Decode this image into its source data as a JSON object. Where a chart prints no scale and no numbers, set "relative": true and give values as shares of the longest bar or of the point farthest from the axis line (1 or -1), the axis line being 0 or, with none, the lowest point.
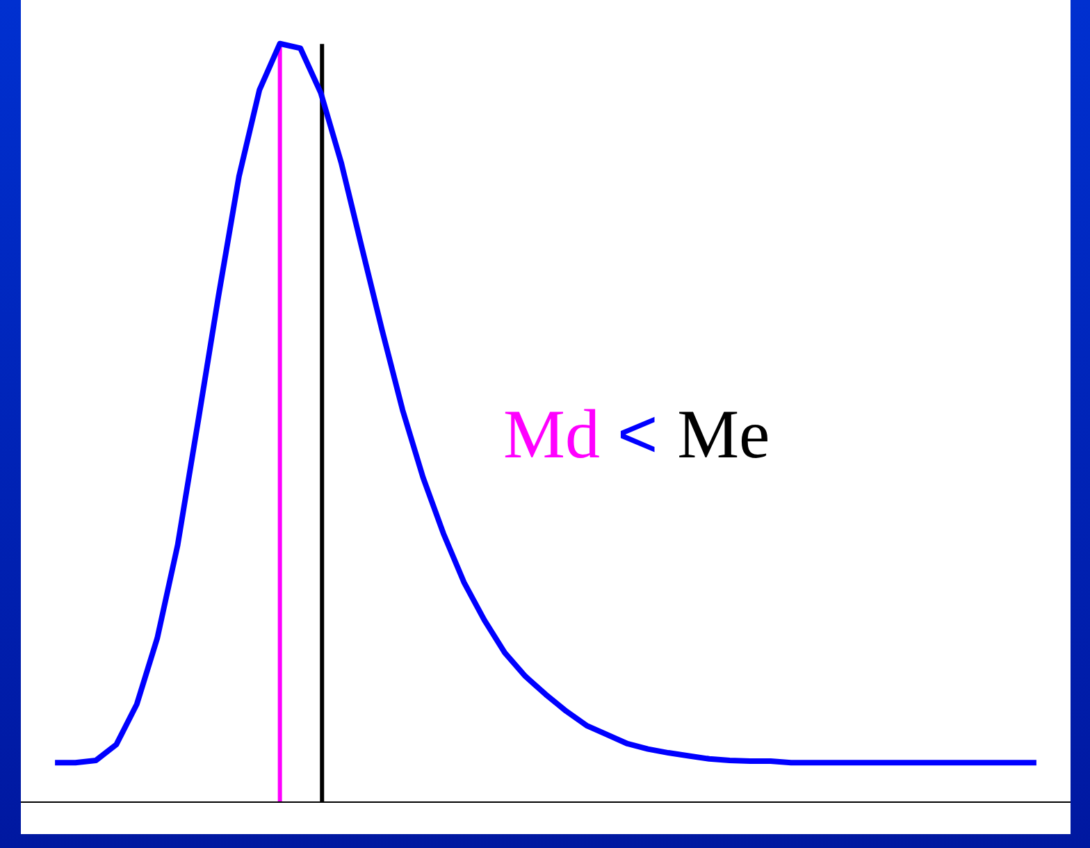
{
  "chart_data": {
    "type": "line",
    "relative": true,
    "annotations": [
      "Md < Me"
    ],
    "categories": [
      null,
      null,
      null,
      null,
      null,
      null,
      null,
      null,
      null,
      null,
      null,
      null,
      null,
      null,
      null,
      null,
      null,
      null,
      null,
      null,
      null,
      null,
      null,
      null,
      null,
      null,
      null,
      null,
      null,
      null,
      null,
      null,
      null,
      null,
      null,
      null,
      null,
      null,
      null,
      null,
      null,
      null,
      null,
      null,
      null,
      null,
      null,
      null,
      null
    ],
    "series": [
      {
        "color": "#0000ff",
        "values": [
          0.052,
          0.052,
          0.055,
          0.076,
          0.129,
          0.216,
          0.339,
          0.502,
          0.668,
          0.825,
          0.939,
          1,
          0.994,
          0.935,
          0.843,
          0.732,
          0.622,
          0.517,
          0.428,
          0.354,
          0.29,
          0.24,
          0.197,
          0.166,
          0.142,
          0.12,
          0.101,
          0.089,
          0.077,
          0.07,
          0.065,
          0.061,
          0.057,
          0.055,
          0.054,
          0.054,
          0.052,
          0.052,
          0.052,
          0.052,
          0.052,
          0.052,
          0.052,
          0.052,
          0.052,
          0.052,
          0.052,
          0.052,
          0.052
        ]
      }
    ],
    "grid": false,
    "legend": false,
    "marker": "none",
    "line_style": "solid"
  }
}
